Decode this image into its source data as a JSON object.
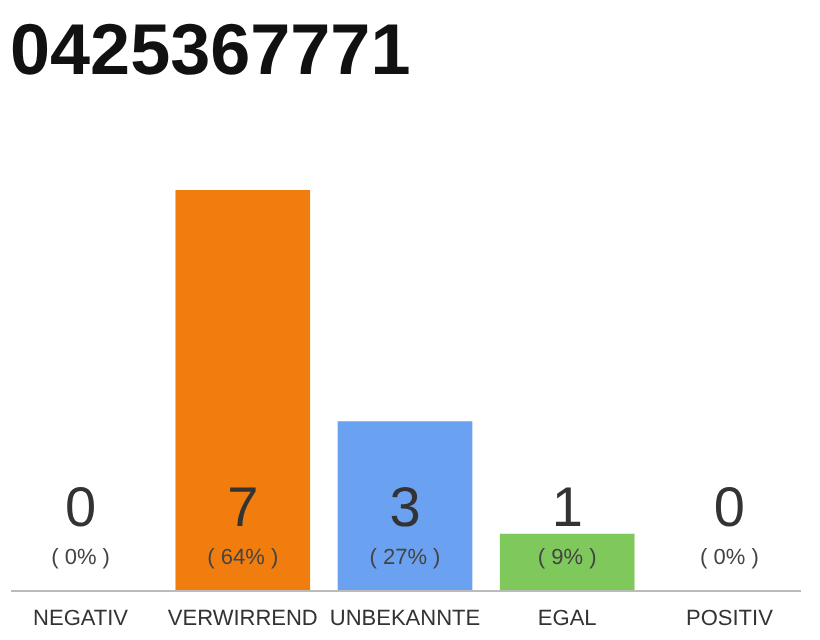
{
  "chart_data": {
    "type": "bar",
    "title": "0425367771",
    "categories": [
      "NEGATIV",
      "VERWIRREND",
      "UNBEKANNTE",
      "EGAL",
      "POSITIV"
    ],
    "values": [
      0,
      64,
      27,
      9,
      0
    ],
    "colors": [
      "#cccccc",
      "#f07d0e",
      "#6aa1f0",
      "#7ec85c",
      "#cccccc"
    ],
    "value_labels": [
      "( 0% )",
      "( 64% )",
      "( 27% )",
      "( 9% )",
      "( 0% )"
    ],
    "annotations": [
      "0",
      "7",
      "3",
      "1",
      "0"
    ]
  }
}
